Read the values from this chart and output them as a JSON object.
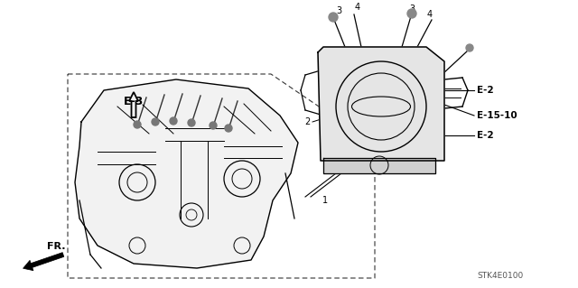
{
  "title": "",
  "background_color": "#ffffff",
  "fig_width": 6.4,
  "fig_height": 3.19,
  "dpi": 100,
  "diagram_code": "STK4E0100",
  "labels": {
    "E3": "E-3",
    "E2_top": "E-2",
    "E15_10": "E-15-10",
    "E2_bottom": "E-2",
    "FR": "FR.",
    "num1": "1",
    "num2": "2",
    "num3a": "3",
    "num3b": "3",
    "num4a": "4",
    "num4b": "4"
  },
  "colors": {
    "line": "#000000",
    "dashed": "#555555",
    "text": "#000000",
    "background": "#ffffff"
  }
}
